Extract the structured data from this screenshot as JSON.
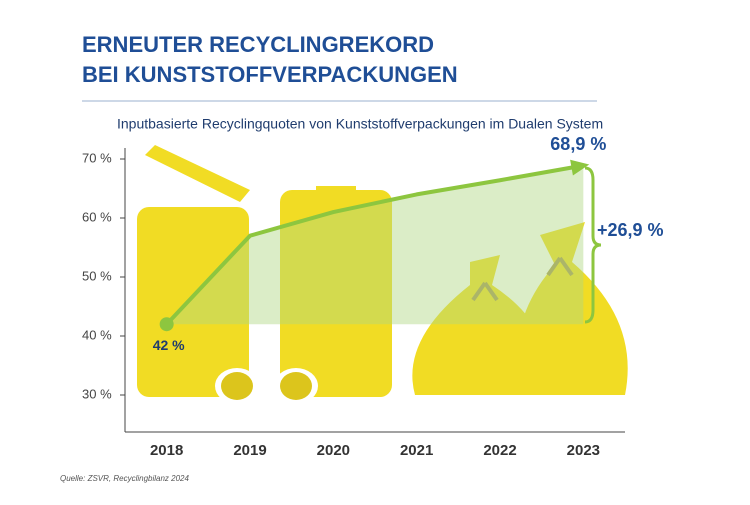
{
  "chart_data": {
    "type": "line",
    "title": [
      "ERNEUTER RECYCLINGREKORD",
      "BEI KUNSTSTOFFVERPACKUNGEN"
    ],
    "subtitle": "Inputbasierte Recyclingquoten von Kunststoffverpackungen im Dualen System",
    "categories": [
      "2018",
      "2019",
      "2020",
      "2021",
      "2022",
      "2023"
    ],
    "series": [
      {
        "name": "Recyclingquote",
        "color": "#8dc63f",
        "values": [
          42,
          57,
          61,
          64,
          66.4,
          68.9
        ],
        "value_labels": [
          "42 %",
          null,
          null,
          null,
          null,
          "68,9 %"
        ]
      }
    ],
    "ylim": [
      24,
      72
    ],
    "yticks": [
      {
        "value": 30,
        "label": "30 %"
      },
      {
        "value": 40,
        "label": "40 %"
      },
      {
        "value": 50,
        "label": "50 %"
      },
      {
        "value": 60,
        "label": "60 %"
      },
      {
        "value": 70,
        "label": "70 %"
      }
    ],
    "annotation": "+26,9 %",
    "source": "Quelle: ZSVR, Recyclingbilanz 2024"
  }
}
